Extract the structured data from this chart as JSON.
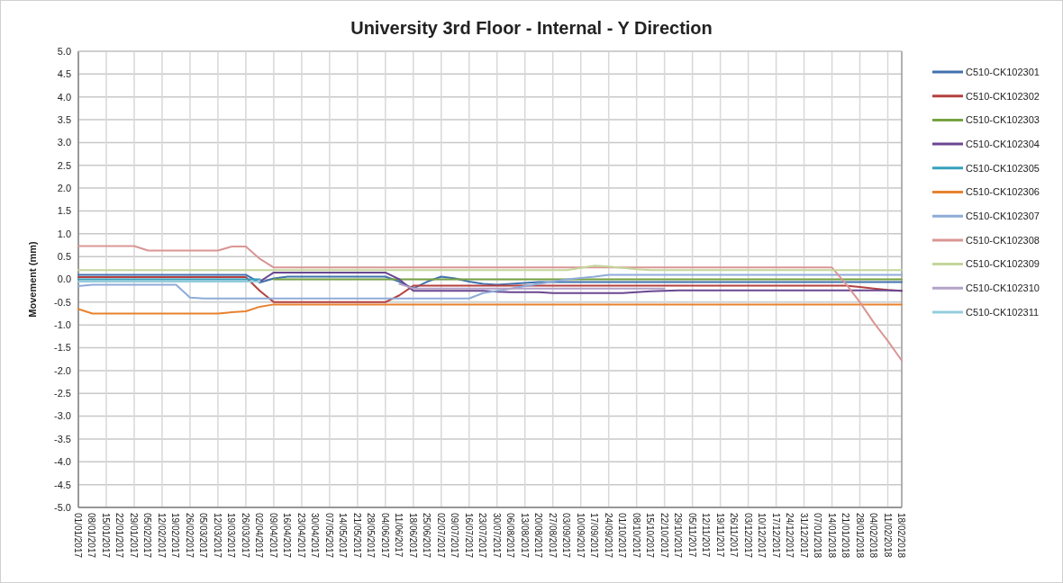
{
  "chart_data": {
    "type": "line",
    "title": "University 3rd Floor - Internal - Y Direction",
    "ylabel": "Movement (mm)",
    "categories": [
      "01/01/2017",
      "08/01/2017",
      "15/01/2017",
      "22/01/2017",
      "29/01/2017",
      "05/02/2017",
      "12/02/2017",
      "19/02/2017",
      "26/02/2017",
      "05/03/2017",
      "12/03/2017",
      "19/03/2017",
      "26/03/2017",
      "02/04/2017",
      "09/04/2017",
      "16/04/2017",
      "23/04/2017",
      "30/04/2017",
      "07/05/2017",
      "14/05/2017",
      "21/05/2017",
      "28/05/2017",
      "04/06/2017",
      "11/06/2017",
      "18/06/2017",
      "25/06/2017",
      "02/07/2017",
      "09/07/2017",
      "16/07/2017",
      "23/07/2017",
      "30/07/2017",
      "06/08/2017",
      "13/08/2017",
      "20/08/2017",
      "27/08/2017",
      "03/09/2017",
      "10/09/2017",
      "17/09/2017",
      "24/09/2017",
      "01/10/2017",
      "08/10/2017",
      "15/10/2017",
      "22/10/2017",
      "29/10/2017",
      "05/11/2017",
      "12/11/2017",
      "19/11/2017",
      "26/11/2017",
      "03/12/2017",
      "10/12/2017",
      "17/12/2017",
      "24/12/2017",
      "31/12/2017",
      "07/01/2018",
      "14/01/2018",
      "21/01/2018",
      "28/01/2018",
      "04/02/2018",
      "11/02/2018",
      "18/02/2018"
    ],
    "ylim": [
      -5,
      5
    ],
    "yticks": [
      {
        "value": 5,
        "label": "5.0"
      },
      {
        "value": 4.5,
        "label": "4.5"
      },
      {
        "value": 4,
        "label": "4.0"
      },
      {
        "value": 3.5,
        "label": "3.5"
      },
      {
        "value": 3,
        "label": "3.0"
      },
      {
        "value": 2.5,
        "label": "2.5"
      },
      {
        "value": 2,
        "label": "2.0"
      },
      {
        "value": 1.5,
        "label": "1.5"
      },
      {
        "value": 1,
        "label": "1.0"
      },
      {
        "value": 0.5,
        "label": "0.5"
      },
      {
        "value": 0,
        "label": "0.0"
      },
      {
        "value": -0.5,
        "label": "-0.5"
      },
      {
        "value": -1,
        "label": "-1.0"
      },
      {
        "value": -1.5,
        "label": "-1.5"
      },
      {
        "value": -2,
        "label": "-2.0"
      },
      {
        "value": -2.5,
        "label": "-2.5"
      },
      {
        "value": -3,
        "label": "-3.0"
      },
      {
        "value": -3.5,
        "label": "-3.5"
      },
      {
        "value": -4,
        "label": "-4.0"
      },
      {
        "value": -4.5,
        "label": "-4.5"
      },
      {
        "value": -5,
        "label": "-5.0"
      }
    ],
    "grid": true,
    "legend": "right",
    "marker": "none",
    "line_style": "solid",
    "series": [
      {
        "name": "C510-CK102301",
        "color": "#4071ad",
        "values": [
          0.1,
          0.1,
          0.1,
          0.1,
          0.1,
          0.1,
          0.1,
          0.1,
          0.1,
          0.1,
          0.1,
          0.1,
          0.1,
          -0.07,
          0.02,
          0.06,
          0.06,
          0.06,
          0.06,
          0.06,
          0.06,
          0.06,
          0.06,
          -0.05,
          -0.2,
          -0.05,
          0.06,
          0.02,
          -0.05,
          -0.1,
          -0.12,
          -0.1,
          -0.08,
          -0.06,
          -0.06,
          -0.06,
          -0.06,
          -0.06,
          -0.06,
          -0.06,
          -0.06,
          -0.06,
          -0.06,
          -0.06,
          -0.06,
          -0.06,
          -0.06,
          -0.06,
          -0.06,
          -0.06,
          -0.06,
          -0.06,
          -0.06,
          -0.06,
          -0.06,
          -0.06,
          -0.06,
          -0.06,
          -0.06,
          -0.06
        ]
      },
      {
        "name": "C510-CK102302",
        "color": "#b5403f",
        "values": [
          0.05,
          0.05,
          0.05,
          0.05,
          0.05,
          0.05,
          0.05,
          0.05,
          0.05,
          0.05,
          0.05,
          0.05,
          0.05,
          -0.25,
          -0.5,
          -0.5,
          -0.5,
          -0.5,
          -0.5,
          -0.5,
          -0.5,
          -0.5,
          -0.5,
          -0.35,
          -0.14,
          -0.14,
          -0.14,
          -0.14,
          -0.14,
          -0.14,
          -0.14,
          -0.14,
          -0.14,
          -0.14,
          -0.14,
          -0.14,
          -0.14,
          -0.14,
          -0.14,
          -0.14,
          -0.14,
          -0.14,
          -0.14,
          -0.14,
          -0.14,
          -0.14,
          -0.14,
          -0.14,
          -0.14,
          -0.14,
          -0.14,
          -0.14,
          -0.14,
          -0.14,
          -0.14,
          -0.14,
          -0.17,
          -0.2,
          -0.23,
          -0.25
        ]
      },
      {
        "name": "C510-CK102303",
        "color": "#77a342",
        "values": [
          null,
          null,
          null,
          null,
          null,
          null,
          null,
          null,
          null,
          null,
          null,
          null,
          null,
          null,
          0,
          0,
          0,
          0,
          0,
          0,
          0,
          0,
          0,
          0,
          0,
          0,
          0,
          0,
          0,
          0,
          0,
          0,
          0,
          0,
          0,
          0,
          0,
          0,
          0,
          0,
          0,
          0,
          0,
          0,
          0,
          0,
          0,
          0,
          0,
          0,
          0,
          0,
          0,
          0,
          0,
          0,
          0,
          0,
          0,
          0
        ]
      },
      {
        "name": "C510-CK102304",
        "color": "#6a4791",
        "values": [
          null,
          null,
          null,
          null,
          null,
          null,
          null,
          null,
          null,
          null,
          null,
          null,
          null,
          -0.05,
          0.15,
          0.15,
          0.15,
          0.15,
          0.15,
          0.15,
          0.15,
          0.15,
          0.15,
          0.0,
          -0.25,
          -0.25,
          -0.25,
          -0.25,
          -0.25,
          -0.25,
          -0.27,
          -0.28,
          -0.28,
          -0.28,
          -0.3,
          -0.3,
          -0.3,
          -0.3,
          -0.3,
          -0.3,
          -0.28,
          -0.26,
          -0.25,
          -0.24,
          -0.24,
          -0.24,
          -0.24,
          -0.24,
          -0.24,
          -0.24,
          -0.24,
          -0.24,
          -0.24,
          -0.24,
          -0.24,
          -0.24,
          -0.24,
          -0.24,
          -0.24,
          -0.25
        ]
      },
      {
        "name": "C510-CK102305",
        "color": "#35a0bc",
        "values": [
          0,
          0,
          0,
          0,
          0,
          0,
          0,
          0,
          0,
          0,
          0,
          0,
          0,
          0,
          null,
          null,
          null,
          null,
          null,
          null,
          null,
          null,
          null,
          null,
          null,
          null,
          null,
          null,
          null,
          null,
          null,
          null,
          null,
          null,
          null,
          null,
          null,
          null,
          null,
          null,
          null,
          null,
          null,
          null,
          null,
          null,
          null,
          null,
          null,
          null,
          null,
          null,
          null,
          null,
          null,
          null,
          null,
          null,
          null,
          null
        ]
      },
      {
        "name": "C510-CK102306",
        "color": "#e8822f",
        "values": [
          -0.65,
          -0.75,
          -0.75,
          -0.75,
          -0.75,
          -0.75,
          -0.75,
          -0.75,
          -0.75,
          -0.75,
          -0.75,
          -0.72,
          -0.7,
          -0.6,
          -0.55,
          -0.55,
          -0.55,
          -0.55,
          -0.55,
          -0.55,
          -0.55,
          -0.55,
          -0.55,
          -0.55,
          -0.55,
          -0.55,
          -0.55,
          -0.55,
          -0.55,
          -0.55,
          -0.55,
          -0.55,
          -0.55,
          -0.55,
          -0.55,
          -0.55,
          -0.55,
          -0.55,
          -0.55,
          -0.55,
          -0.55,
          -0.55,
          -0.55,
          -0.55,
          -0.55,
          -0.55,
          -0.55,
          -0.55,
          -0.55,
          -0.55,
          -0.55,
          -0.55,
          -0.55,
          -0.55,
          -0.55,
          -0.55,
          -0.55,
          -0.55,
          -0.55,
          -0.55
        ]
      },
      {
        "name": "C510-CK102307",
        "color": "#8eabd8",
        "values": [
          -0.15,
          -0.12,
          -0.12,
          -0.12,
          -0.12,
          -0.12,
          -0.12,
          -0.12,
          -0.4,
          -0.42,
          -0.42,
          -0.42,
          -0.42,
          -0.42,
          -0.42,
          -0.42,
          -0.42,
          -0.42,
          -0.42,
          -0.42,
          -0.42,
          -0.42,
          -0.42,
          -0.42,
          -0.42,
          -0.42,
          -0.42,
          -0.42,
          -0.42,
          -0.3,
          -0.25,
          -0.2,
          -0.15,
          -0.1,
          -0.05,
          0.0,
          0.03,
          0.06,
          0.1,
          0.1,
          0.1,
          0.1,
          0.1,
          0.1,
          0.1,
          0.1,
          0.1,
          0.1,
          0.1,
          0.1,
          0.1,
          0.1,
          0.1,
          0.1,
          0.1,
          0.1,
          0.1,
          0.1,
          0.1,
          0.1
        ]
      },
      {
        "name": "C510-CK102308",
        "color": "#d99694",
        "values": [
          0.73,
          0.73,
          0.73,
          0.73,
          0.73,
          0.63,
          0.63,
          0.63,
          0.63,
          0.63,
          0.63,
          0.72,
          0.72,
          0.45,
          0.26,
          0.26,
          0.26,
          0.26,
          0.26,
          0.26,
          0.26,
          0.26,
          0.26,
          0.26,
          0.26,
          0.26,
          0.26,
          0.26,
          0.26,
          0.26,
          0.26,
          0.26,
          0.26,
          0.26,
          0.26,
          0.26,
          0.26,
          0.26,
          0.26,
          0.26,
          0.26,
          0.26,
          0.26,
          0.26,
          0.26,
          0.26,
          0.26,
          0.26,
          0.26,
          0.26,
          0.26,
          0.26,
          0.26,
          0.26,
          0.26,
          -0.1,
          -0.5,
          -0.95,
          -1.35,
          -1.78
        ]
      },
      {
        "name": "C510-CK102309",
        "color": "#c3d69b",
        "values": [
          0.2,
          0.2,
          0.2,
          0.2,
          0.2,
          0.2,
          0.2,
          0.2,
          0.2,
          0.2,
          0.2,
          0.2,
          0.2,
          0.2,
          0.2,
          0.2,
          0.2,
          0.2,
          0.2,
          0.2,
          0.2,
          0.2,
          0.2,
          0.2,
          0.2,
          0.2,
          0.2,
          0.2,
          0.2,
          0.2,
          0.2,
          0.2,
          0.2,
          0.2,
          0.2,
          0.2,
          0.25,
          0.3,
          0.28,
          0.25,
          0.22,
          0.2,
          0.2,
          0.2,
          0.2,
          0.2,
          0.2,
          0.2,
          0.2,
          0.2,
          0.2,
          0.2,
          0.2,
          0.2,
          0.2,
          0.2,
          0.2,
          0.2,
          0.2,
          0.2
        ]
      },
      {
        "name": "C510-CK102310",
        "color": "#b3a2c7",
        "values": [
          null,
          null,
          null,
          null,
          null,
          null,
          null,
          null,
          null,
          null,
          null,
          null,
          null,
          null,
          null,
          null,
          null,
          null,
          null,
          null,
          null,
          null,
          null,
          -0.1,
          -0.2,
          -0.2,
          -0.2,
          -0.2,
          -0.2,
          -0.2,
          -0.2,
          -0.2,
          -0.2,
          -0.2,
          -0.2,
          -0.2,
          -0.2,
          -0.2,
          -0.2,
          -0.2,
          -0.2,
          -0.2,
          -0.2,
          null,
          null,
          null,
          null,
          null,
          null,
          null,
          null,
          null,
          null,
          null,
          null,
          null,
          null,
          null,
          null,
          null
        ]
      },
      {
        "name": "C510-CK102311",
        "color": "#93cddd",
        "values": [
          -0.05,
          -0.05,
          -0.05,
          -0.05,
          -0.05,
          -0.05,
          -0.05,
          -0.05,
          -0.05,
          -0.05,
          -0.05,
          -0.05,
          -0.05,
          -0.05,
          null,
          null,
          null,
          null,
          null,
          null,
          null,
          null,
          null,
          null,
          null,
          null,
          null,
          null,
          null,
          null,
          null,
          null,
          null,
          null,
          null,
          null,
          null,
          null,
          null,
          null,
          null,
          null,
          null,
          null,
          null,
          null,
          null,
          null,
          null,
          null,
          null,
          null,
          null,
          null,
          null,
          null,
          null,
          null,
          null,
          null
        ]
      }
    ]
  }
}
